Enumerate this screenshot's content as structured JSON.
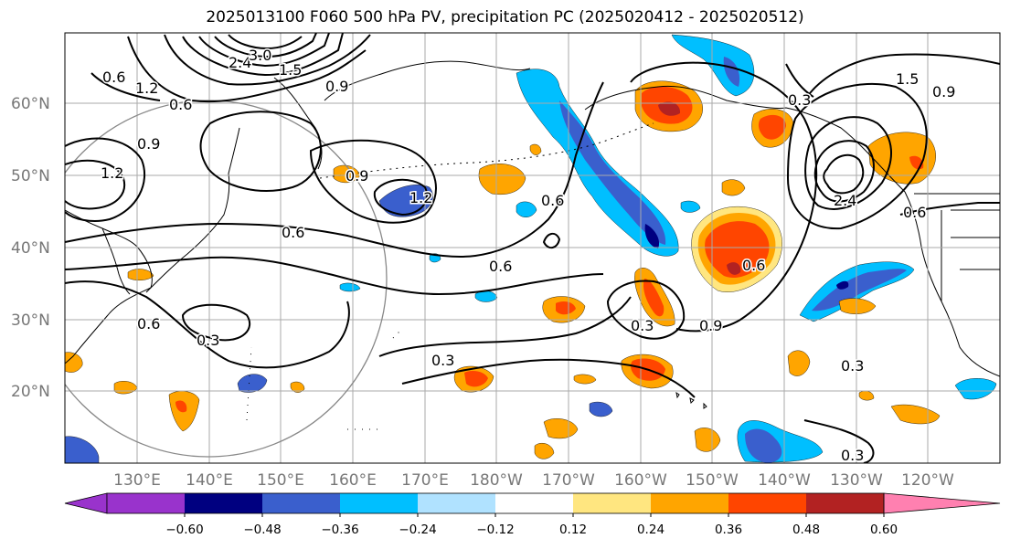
{
  "title": "2025013100 F060 500 hPa PV, precipitation PC (2025020412 - 2025020512)",
  "latitude_labels": [
    "20°N",
    "30°N",
    "40°N",
    "50°N",
    "60°N"
  ],
  "longitude_labels": [
    "130°E",
    "140°E",
    "150°E",
    "160°E",
    "170°E",
    "180°W",
    "170°W",
    "160°W",
    "150°W",
    "140°W",
    "130°W",
    "120°W"
  ],
  "colorbar": {
    "tick_labels": [
      "−0.60",
      "−0.48",
      "−0.36",
      "−0.24",
      "−0.12",
      "0.12",
      "0.24",
      "0.36",
      "0.48",
      "0.60"
    ],
    "colors": [
      "#9933cc",
      "#000080",
      "#3a5fcd",
      "#00bfff",
      "#b0e2ff",
      "#ffffff",
      "#ffe680",
      "#ffa500",
      "#ff4500",
      "#b22222",
      "#ff80b0"
    ]
  },
  "contour_labels": [
    "2.4",
    "3.0",
    "1.5",
    "1.2",
    "0.6",
    "0.9",
    "0.6",
    "0.9",
    "1.2",
    "0.9",
    "1.2",
    "0.6",
    "0.6",
    "0.6",
    "0.3",
    "0.3",
    "0.6",
    "0.3",
    "0.9",
    "0.3",
    "0.3",
    "0.6",
    "2.4",
    "1.5",
    "0.9",
    "0.6",
    "0.3"
  ]
}
